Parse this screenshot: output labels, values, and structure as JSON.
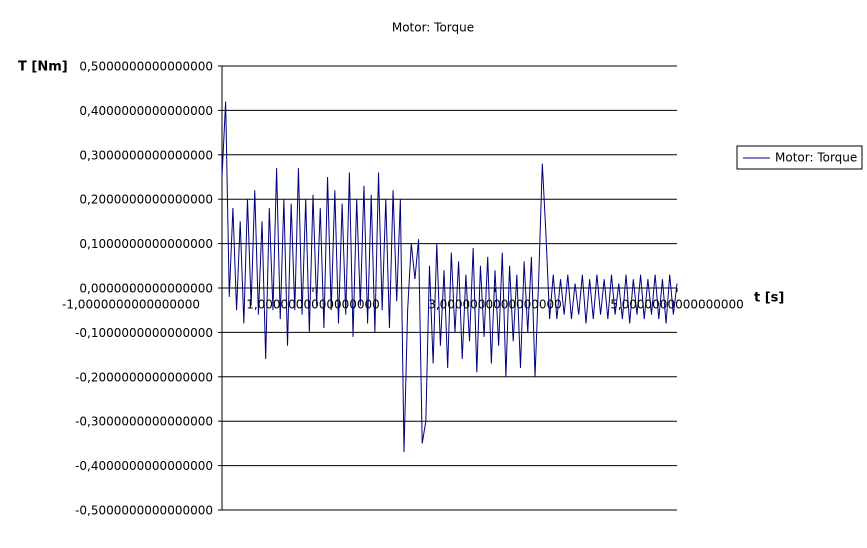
{
  "chart_data": {
    "type": "line",
    "title": "Motor: Torque",
    "y_label": "T [Nm]",
    "x_label": "t [s]",
    "xlim": [
      0,
      5
    ],
    "ylim": [
      -0.5,
      0.5
    ],
    "xticks": [
      {
        "value": -1,
        "label": "-1,0000000000000000"
      },
      {
        "value": 1,
        "label": "1,0000000000000000"
      },
      {
        "value": 3,
        "label": "3,0000000000000000"
      },
      {
        "value": 5,
        "label": "5,0000000000000000"
      }
    ],
    "yticks": [
      {
        "value": 0.5,
        "label": "0,5000000000000000"
      },
      {
        "value": 0.4,
        "label": "0,4000000000000000"
      },
      {
        "value": 0.3,
        "label": "0,3000000000000000"
      },
      {
        "value": 0.2,
        "label": "0,2000000000000000"
      },
      {
        "value": 0.1,
        "label": "0,1000000000000000"
      },
      {
        "value": 0,
        "label": "0,0000000000000000"
      },
      {
        "value": -0.1,
        "label": "-0,1000000000000000"
      },
      {
        "value": -0.2,
        "label": "-0,2000000000000000"
      },
      {
        "value": -0.3,
        "label": "-0,3000000000000000"
      },
      {
        "value": -0.4,
        "label": "-0,4000000000000000"
      },
      {
        "value": -0.5,
        "label": "-0,5000000000000000"
      }
    ],
    "grid": true,
    "legend": "right",
    "x": [
      0,
      0.04,
      0.08,
      0.12,
      0.16,
      0.2,
      0.24,
      0.28,
      0.32,
      0.36,
      0.4,
      0.44,
      0.48,
      0.52,
      0.56,
      0.6,
      0.64,
      0.68,
      0.72,
      0.76,
      0.8,
      0.84,
      0.88,
      0.92,
      0.96,
      1,
      1.04,
      1.08,
      1.12,
      1.16,
      1.2,
      1.24,
      1.28,
      1.32,
      1.36,
      1.4,
      1.44,
      1.48,
      1.52,
      1.56,
      1.6,
      1.64,
      1.68,
      1.72,
      1.76,
      1.8,
      1.84,
      1.88,
      1.92,
      1.96,
      2,
      2.04,
      2.08,
      2.12,
      2.16,
      2.2,
      2.24,
      2.28,
      2.32,
      2.36,
      2.4,
      2.44,
      2.48,
      2.52,
      2.56,
      2.6,
      2.64,
      2.68,
      2.72,
      2.76,
      2.8,
      2.84,
      2.88,
      2.92,
      2.96,
      3,
      3.04,
      3.08,
      3.12,
      3.16,
      3.2,
      3.24,
      3.28,
      3.32,
      3.36,
      3.4,
      3.44,
      3.48,
      3.52,
      3.56,
      3.6,
      3.64,
      3.68,
      3.72,
      3.76,
      3.8,
      3.84,
      3.88,
      3.92,
      3.96,
      4,
      4.04,
      4.08,
      4.12,
      4.16,
      4.2,
      4.24,
      4.28,
      4.32,
      4.36,
      4.4,
      4.44,
      4.48,
      4.52,
      4.56,
      4.6,
      4.64,
      4.68,
      4.72,
      4.76,
      4.8,
      4.84,
      4.88,
      4.92,
      4.96,
      5
    ],
    "series": [
      {
        "name": "Motor: Torque",
        "color": "#000080",
        "values": [
          0.25,
          0.42,
          -0.02,
          0.18,
          -0.05,
          0.15,
          -0.08,
          0.2,
          -0.04,
          0.22,
          -0.06,
          0.15,
          -0.16,
          0.18,
          -0.05,
          0.27,
          -0.07,
          0.2,
          -0.13,
          0.19,
          -0.05,
          0.27,
          -0.06,
          0.2,
          -0.1,
          0.21,
          -0.04,
          0.18,
          -0.09,
          0.25,
          -0.05,
          0.22,
          -0.08,
          0.19,
          -0.06,
          0.26,
          -0.11,
          0.2,
          -0.04,
          0.23,
          -0.08,
          0.21,
          -0.1,
          0.26,
          -0.05,
          0.2,
          -0.09,
          0.22,
          -0.03,
          0.2,
          -0.37,
          -0.05,
          0.1,
          0.02,
          0.11,
          -0.35,
          -0.3,
          0.05,
          -0.17,
          0.1,
          -0.13,
          0.04,
          -0.18,
          0.08,
          -0.1,
          0.06,
          -0.16,
          0.03,
          -0.12,
          0.09,
          -0.19,
          0.05,
          -0.11,
          0.07,
          -0.17,
          0.04,
          -0.13,
          0.08,
          -0.2,
          0.05,
          -0.12,
          0.03,
          -0.18,
          0.06,
          -0.1,
          0.07,
          -0.2,
          0.02,
          0.28,
          0.12,
          -0.07,
          0.03,
          -0.07,
          0.02,
          -0.06,
          0.03,
          -0.07,
          0.01,
          -0.06,
          0.03,
          -0.08,
          0.02,
          -0.07,
          0.03,
          -0.06,
          0.02,
          -0.07,
          0.03,
          -0.06,
          0.01,
          -0.07,
          0.03,
          -0.08,
          0.02,
          -0.06,
          0.03,
          -0.07,
          0.02,
          -0.06,
          0.03,
          -0.07,
          0.02,
          -0.08,
          0.03,
          -0.06,
          0.01
        ]
      }
    ]
  }
}
